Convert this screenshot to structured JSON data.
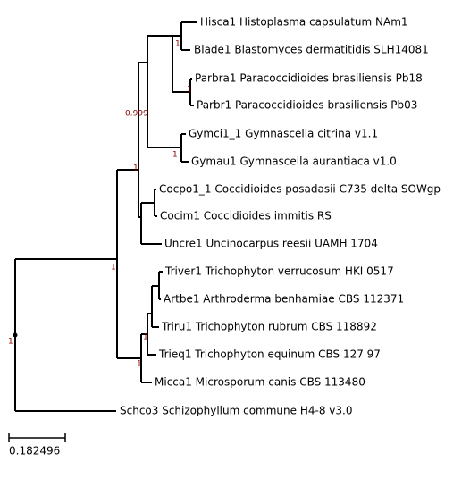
{
  "leaves": [
    "Hisca1 Histoplasma capsulatum NAm1",
    "Blade1 Blastomyces dermatitidis SLH14081",
    "Parbra1 Paracoccidioides brasiliensis Pb18",
    "Parbr1 Paracoccidioides brasiliensis Pb03",
    "Gymci1_1 Gymnascella citrina v1.1",
    "Gymau1 Gymnascella aurantiaca v1.0",
    "Cocpo1_1 Coccidioides posadasii C735 delta SOWgp",
    "Cocim1 Coccidioides immitis RS",
    "Uncre1 Uncinocarpus reesii UAMH 1704",
    "Triver1 Trichophyton verrucosum HKI 0517",
    "Artbe1 Arthroderma benhamiae CBS 112371",
    "Triru1 Trichophyton rubrum CBS 118892",
    "Trieq1 Trichophyton equinum CBS 127 97",
    "Micca1 Microsporum canis CBS 113480",
    "Schco3 Schizophyllum commune H4-8 v3.0"
  ],
  "supports": [
    "1",
    "1",
    "0.999",
    "1",
    "1",
    "1",
    "1",
    "1",
    "1"
  ],
  "scale_bar": "0.182496"
}
